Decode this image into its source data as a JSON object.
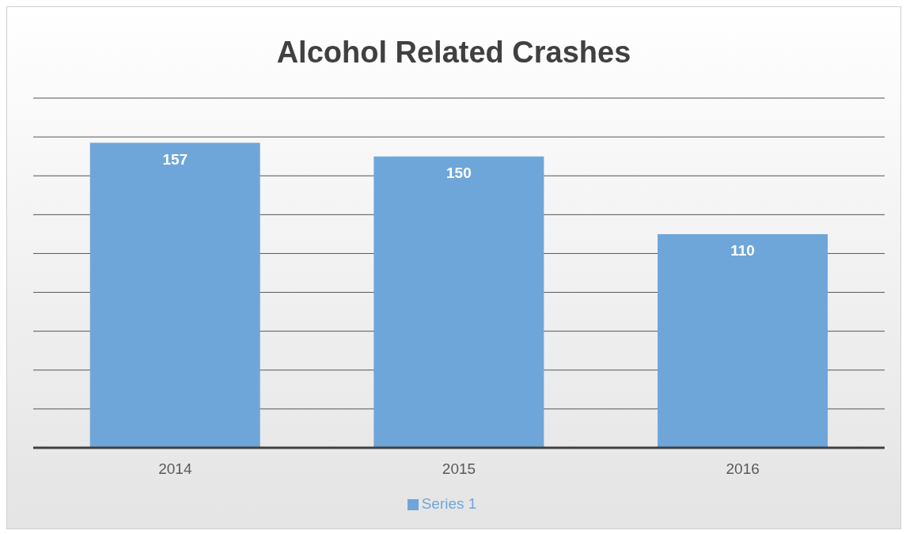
{
  "chart_data": {
    "type": "bar",
    "title": "Alcohol Related Crashes",
    "categories": [
      "2014",
      "2015",
      "2016"
    ],
    "series": [
      {
        "name": "Series 1",
        "color": "#6fa6da",
        "values": [
          157,
          150,
          110
        ]
      }
    ],
    "tick_labels": "x",
    "grid": "y",
    "data_labels": true,
    "legend": "bottom"
  }
}
